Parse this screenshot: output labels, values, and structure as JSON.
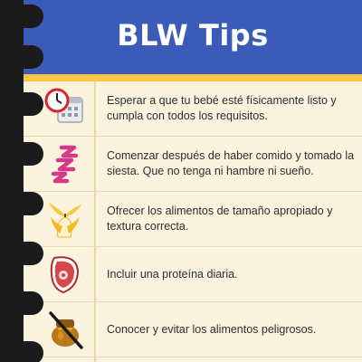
{
  "header": {
    "title": "BLW Tips"
  },
  "tips": [
    {
      "icon": "clock-calendar-icon",
      "text": "Esperar a que tu bebé esté físicamente listo y cumpla con todos los requisitos."
    },
    {
      "icon": "sleep-zzz-icon",
      "text": "Comenzar después de haber comido y tomado la siesta. Que no tenga ni hambre ni sueño."
    },
    {
      "icon": "banana-icon",
      "text": "Ofrecer los alimentos de tamaño apropiado y textura correcta."
    },
    {
      "icon": "steak-icon",
      "text": "Incluir una proteína diaria."
    },
    {
      "icon": "no-honey-icon",
      "text": "Conocer y evitar los alimentos peligrosos."
    }
  ],
  "colors": {
    "header": "#3b5bb8",
    "stripe": "#f7c843",
    "paper": "#fbf3dd",
    "binding": "#1b1b1b",
    "zzz": "#d6398c"
  }
}
